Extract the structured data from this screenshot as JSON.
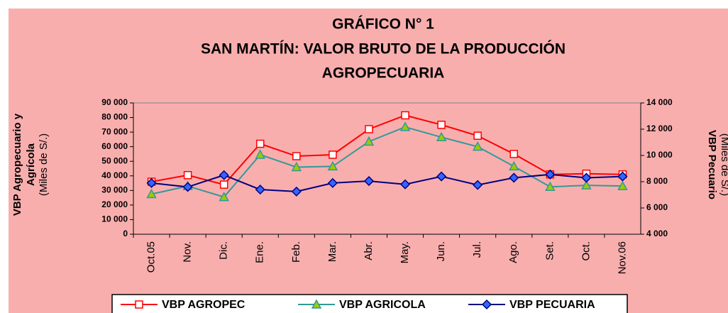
{
  "chart_data": {
    "type": "line",
    "title": [
      "GRÁFICO N° 1",
      "SAN MARTÍN: VALOR BRUTO DE LA PRODUCCIÓN",
      "AGROPECUARIA"
    ],
    "y_label": [
      "VBP Agropecuario y",
      "Agrícola"
    ],
    "y_unit": "(Miles de S/.)",
    "y2_label": "VBP Pecuario",
    "y2_unit": "(Miles de S/.)",
    "categories": [
      "Oct.05",
      "Nov.",
      "Dic.",
      "Ene.",
      "Feb.",
      "Mar.",
      "Abr.",
      "May.",
      "Jun.",
      "Jul.",
      "Ago.",
      "Set.",
      "Oct.",
      "Nov.06"
    ],
    "series": [
      {
        "name": "VBP AGROPEC",
        "color": "#ff0000",
        "marker": "square",
        "marker_fill": "#ffffff",
        "values": [
          36000,
          40500,
          34000,
          62000,
          53500,
          54500,
          72000,
          81500,
          75000,
          67500,
          55000,
          41000,
          41500,
          41000
        ]
      },
      {
        "name": "VBP AGRICOLA",
        "color": "#339999",
        "marker": "triangle",
        "marker_fill": "#99cc00",
        "values": [
          27500,
          33000,
          25500,
          54500,
          46000,
          46500,
          63500,
          73500,
          66500,
          60000,
          46500,
          32500,
          33500,
          33000
        ]
      },
      {
        "name": "VBP PECUARIA",
        "color": "#000080",
        "marker": "diamond",
        "marker_fill": "#3366ff",
        "axis": "y2",
        "values": [
          7900,
          7600,
          8500,
          7400,
          7250,
          7900,
          8050,
          7800,
          8400,
          7750,
          8300,
          8550,
          8300,
          8400
        ]
      }
    ],
    "ylim": [
      0,
      90000
    ],
    "yticks": [
      0,
      {
        "value": 10000,
        "label": "10 000"
      },
      {
        "value": 20000,
        "label": "20 000"
      },
      {
        "value": 30000,
        "label": "30 000"
      },
      {
        "value": 40000,
        "label": "40 000"
      },
      {
        "value": 50000,
        "label": "50 000"
      },
      {
        "value": 60000,
        "label": "60 000"
      },
      {
        "value": 70000,
        "label": "70 000"
      },
      {
        "value": 80000,
        "label": "80 000"
      },
      {
        "value": 90000,
        "label": "90 000"
      }
    ],
    "y2lim": [
      4000,
      14000
    ],
    "y2ticks": [
      {
        "value": 4000,
        "label": "4 000"
      },
      {
        "value": 6000,
        "label": "6 000"
      },
      {
        "value": 8000,
        "label": "8 000"
      },
      {
        "value": 10000,
        "label": "10 000"
      },
      {
        "value": 12000,
        "label": "12 000"
      },
      {
        "value": 14000,
        "label": "14 000"
      }
    ],
    "grid": false,
    "legend": "bottom",
    "background": "#f9aeae"
  }
}
